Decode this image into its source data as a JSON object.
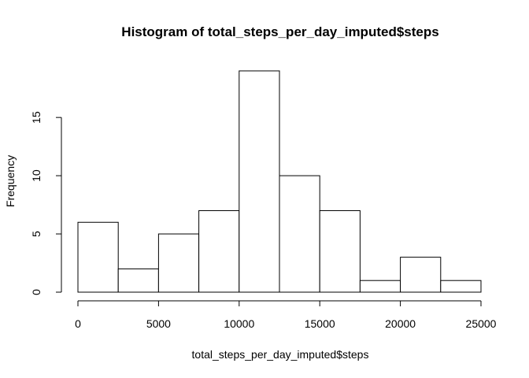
{
  "chart_data": {
    "type": "bar",
    "title": "Histogram of total_steps_per_day_imputed$steps",
    "xlabel": "total_steps_per_day_imputed$steps",
    "ylabel": "Frequency",
    "bins": [
      {
        "from": 0,
        "to": 2500,
        "count": 6
      },
      {
        "from": 2500,
        "to": 5000,
        "count": 2
      },
      {
        "from": 5000,
        "to": 7500,
        "count": 5
      },
      {
        "from": 7500,
        "to": 10000,
        "count": 7
      },
      {
        "from": 10000,
        "to": 12500,
        "count": 19
      },
      {
        "from": 12500,
        "to": 15000,
        "count": 10
      },
      {
        "from": 15000,
        "to": 17500,
        "count": 7
      },
      {
        "from": 17500,
        "to": 20000,
        "count": 1
      },
      {
        "from": 20000,
        "to": 22500,
        "count": 3
      },
      {
        "from": 22500,
        "to": 25000,
        "count": 1
      }
    ],
    "xlim": [
      0,
      25000
    ],
    "ylim": [
      0,
      19
    ],
    "x_ticks": [
      0,
      5000,
      10000,
      15000,
      20000,
      25000
    ],
    "y_ticks": [
      0,
      5,
      10,
      15
    ],
    "grid": false,
    "legend": "none"
  }
}
